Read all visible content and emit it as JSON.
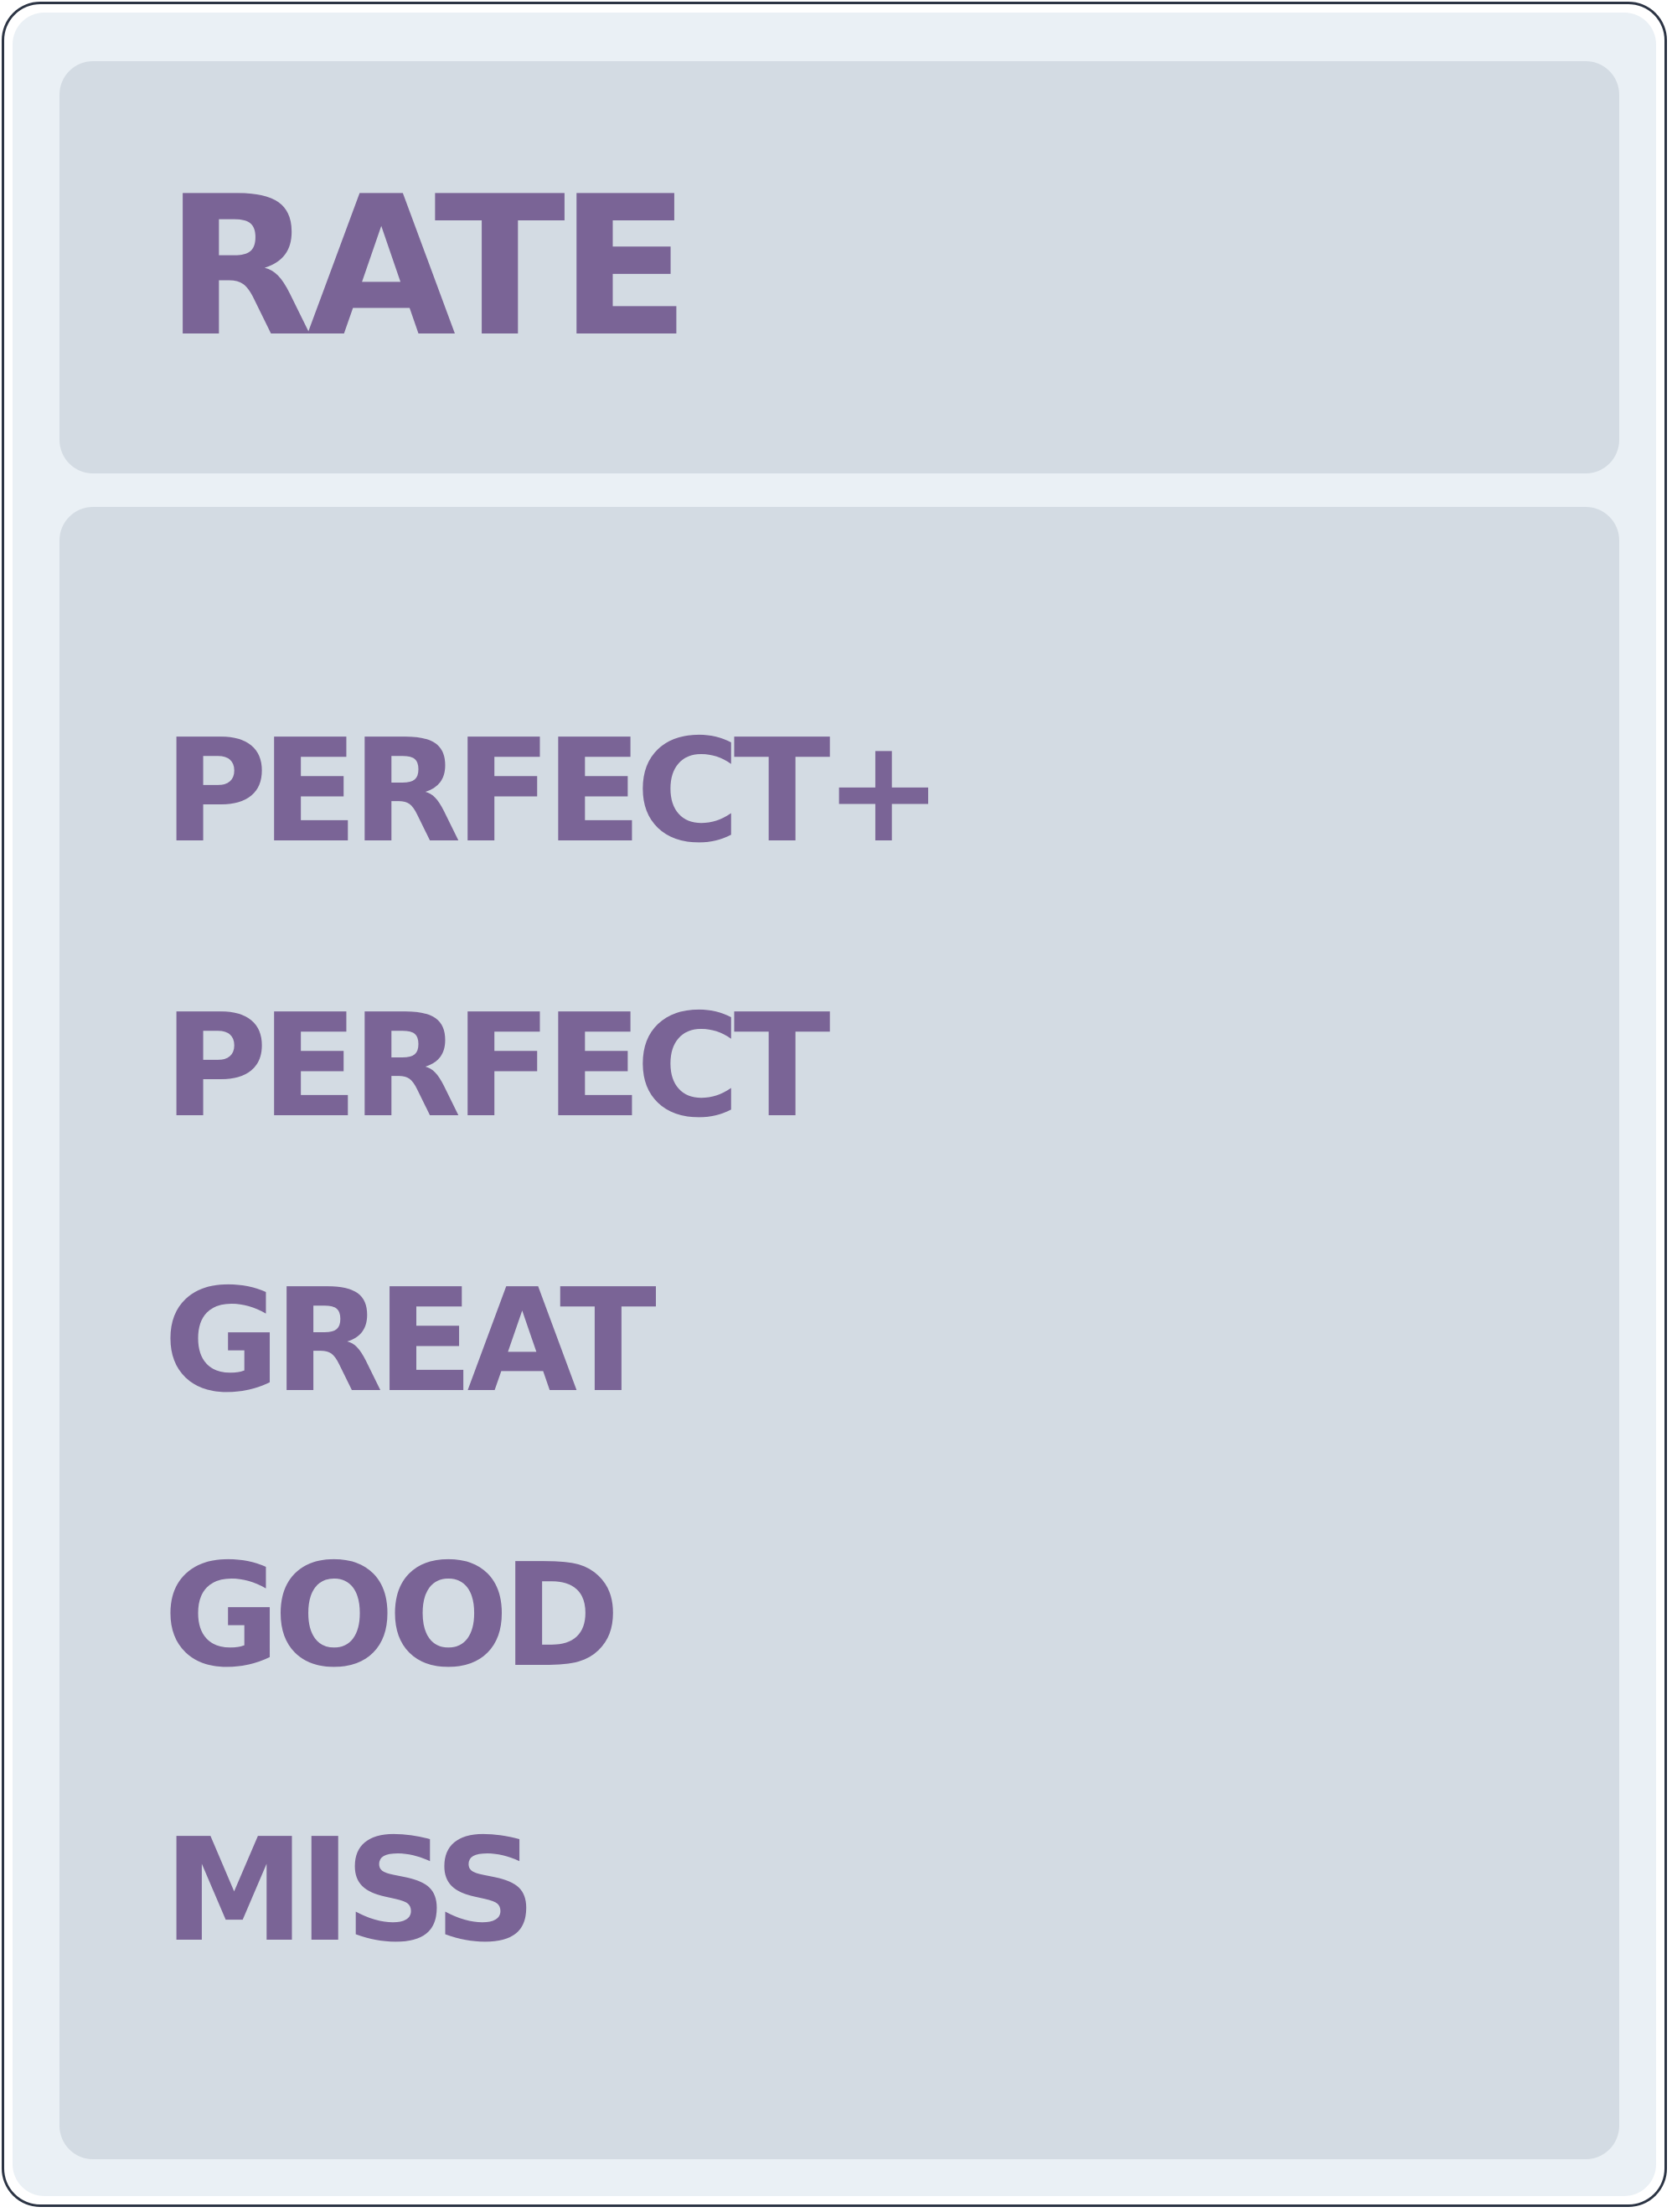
{
  "title": "RATE",
  "colors": {
    "text": "#7a6496",
    "panel": "#d3dbe3",
    "background": "#eaf0f5",
    "border": "#2c3444"
  },
  "ratings": [
    {
      "label": "PERFECT+"
    },
    {
      "label": "PERFECT"
    },
    {
      "label": "GREAT"
    },
    {
      "label": "GOOD"
    },
    {
      "label": "MISS"
    }
  ]
}
